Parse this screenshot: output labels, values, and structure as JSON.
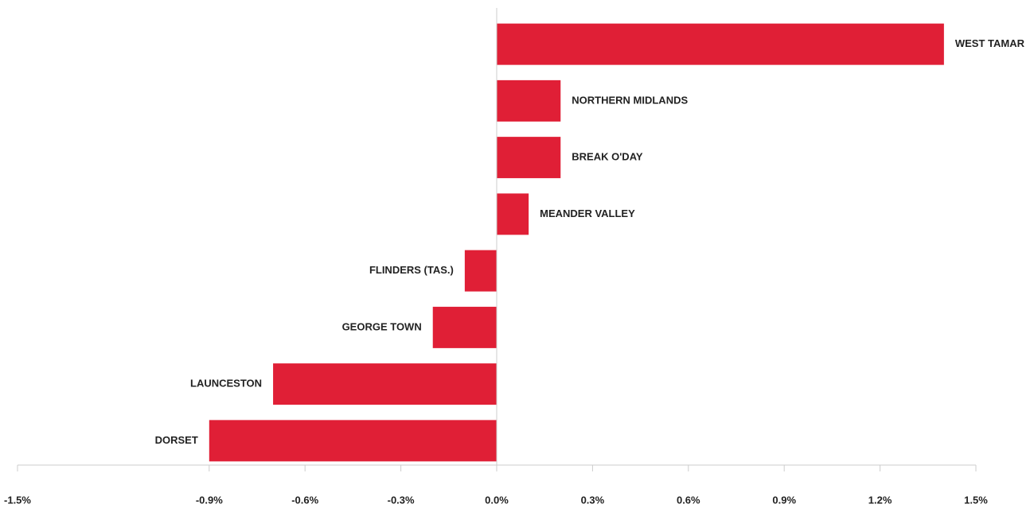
{
  "chart_data": {
    "type": "hbar",
    "categories": [
      "WEST TAMAR",
      "NORTHERN MIDLANDS",
      "BREAK O'DAY",
      "MEANDER VALLEY",
      "FLINDERS (TAS.)",
      "GEORGE TOWN",
      "LAUNCESTON",
      "DORSET"
    ],
    "values": [
      1.4,
      0.2,
      0.2,
      0.1,
      -0.1,
      -0.2,
      -0.7,
      -0.9
    ],
    "color": "#e01f36",
    "xlim": [
      -1.5,
      1.5
    ],
    "xticks": [
      {
        "value": -1.5,
        "label": "-1.5%"
      },
      {
        "value": -0.9,
        "label": "-0.9%"
      },
      {
        "value": -0.6,
        "label": "-0.6%"
      },
      {
        "value": -0.3,
        "label": "-0.3%"
      },
      {
        "value": 0,
        "label": "0.0%"
      },
      {
        "value": 0.3,
        "label": "0.3%"
      },
      {
        "value": 0.6,
        "label": "0.6%"
      },
      {
        "value": 0.9,
        "label": "0.9%"
      },
      {
        "value": 1.2,
        "label": "1.2%"
      },
      {
        "value": 1.5,
        "label": "1.5%"
      }
    ]
  }
}
